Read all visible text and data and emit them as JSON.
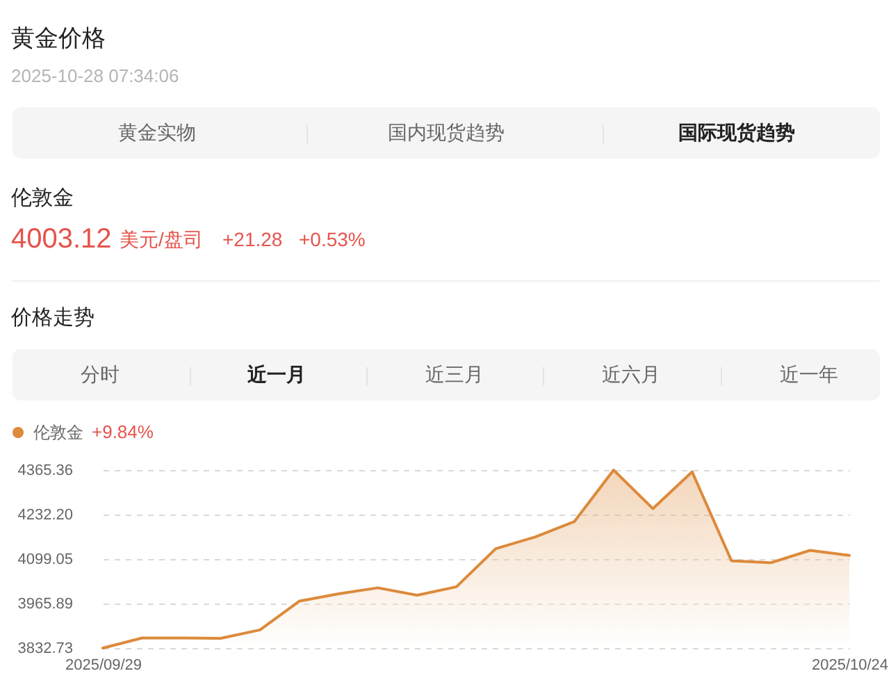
{
  "chart_data": [
    {
      "type": "other",
      "title": "黄金价格",
      "subtitle": "2025-10-28 07:34:06",
      "annotations": [
        "黄金实物",
        "国内现货趋势",
        "国际现货趋势",
        "伦敦金",
        "4003.12",
        "美元/盘司",
        "+21.28",
        "+0.53%",
        "价格走势",
        "分时",
        "近一月",
        "近三月",
        "近六月",
        "近一年"
      ]
    },
    {
      "type": "area",
      "categories": [
        "2025/09/29",
        null,
        null,
        null,
        null,
        null,
        null,
        null,
        null,
        null,
        null,
        null,
        null,
        null,
        null,
        null,
        null,
        null,
        null,
        "2025/10/24"
      ],
      "series": [
        {
          "name": "伦敦金",
          "color": "#dc8a3b",
          "values": [
            3832.73,
            3863,
            3863,
            3862,
            3887,
            3973,
            3995,
            4013,
            3991,
            4016,
            4130,
            4165,
            4211,
            4365.36,
            4250,
            4360,
            4094,
            4088,
            4125,
            4110
          ]
        }
      ],
      "ylim": [
        3832.73,
        4365.36
      ],
      "yticks": [
        3832.73,
        3965.89,
        4099.05,
        {
          "value": 4232.2,
          "label": "4232.20"
        },
        4365.36
      ],
      "grid": "y",
      "legend": "top left",
      "marker": "none",
      "line_style": "solid",
      "annotations": [
        "+9.84%"
      ]
    }
  ]
}
